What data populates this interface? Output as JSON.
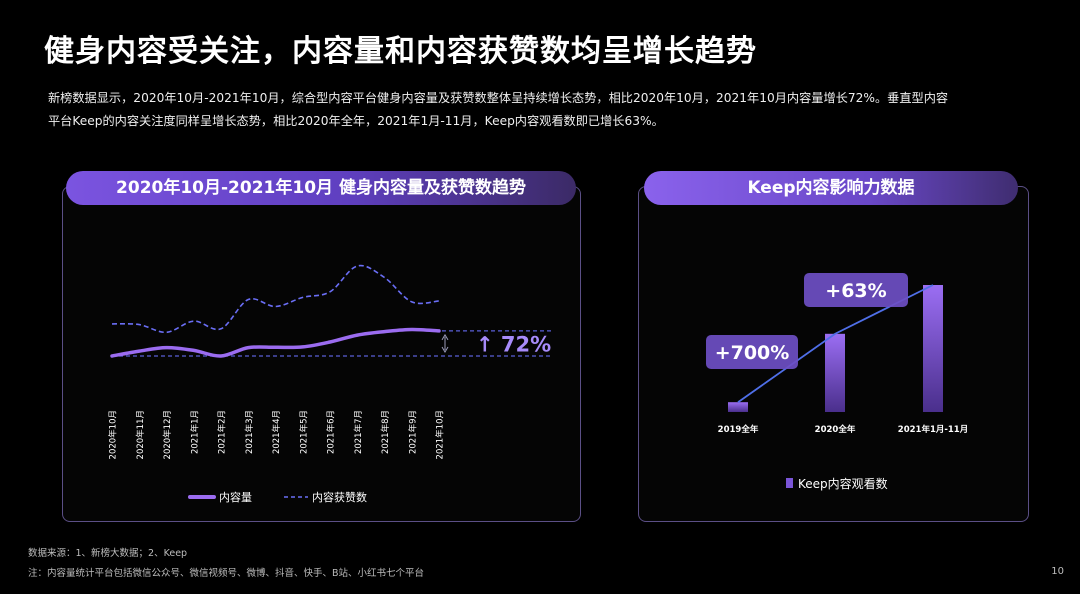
{
  "page": {
    "title": "健身内容受关注，内容量和内容获赞数均呈增长趋势",
    "desc_line1": "新榜数据显示，2020年10月-2021年10月，综合型内容平台健身内容量及获赞数整体呈持续增长态势，相比2020年10月，2021年10月内容量增长72%。垂直型内容",
    "desc_line2": "平台Keep的内容关注度同样呈增长态势，相比2020年全年，2021年1月-11月，Keep内容观看数即已增长63%。",
    "source": "数据来源：1、新榜大数据；2、Keep",
    "note": "注：内容量统计平台包括微信公众号、微信视频号、微博、抖音、快手、B站、小红书七个平台",
    "page_number": "10"
  },
  "colors": {
    "background": "#000000",
    "accent": "#8b5cf6",
    "line_solid": "#9b6cf0",
    "line_dashed": "#6a6ef5",
    "panel_border": "#5b4f86"
  },
  "chart_data": [
    {
      "type": "line",
      "title": "2020年10月-2021年10月 健身内容量及获赞数趋势",
      "categories": [
        "2020年10月",
        "2020年11月",
        "2020年12月",
        "2021年1月",
        "2021年2月",
        "2021年3月",
        "2021年4月",
        "2021年5月",
        "2021年6月",
        "2021年7月",
        "2021年8月",
        "2021年9月",
        "2021年10月"
      ],
      "series": [
        {
          "name": "内容量",
          "style": "solid",
          "values": [
            100,
            114,
            124,
            116,
            100,
            124,
            125,
            126,
            140,
            160,
            170,
            176,
            172
          ]
        },
        {
          "name": "内容获赞数",
          "style": "dashed",
          "values": [
            192,
            190,
            168,
            200,
            178,
            262,
            242,
            268,
            284,
            358,
            325,
            255,
            258
          ]
        }
      ],
      "annotation": "↑ 72%",
      "legend_position": "bottom",
      "grid": false
    },
    {
      "type": "bar",
      "title": "Keep内容影响力数据",
      "categories": [
        "2019全年",
        "2020全年",
        "2021年1月-11月"
      ],
      "series": [
        {
          "name": "Keep内容观看数",
          "values": [
            1,
            8,
            13
          ]
        }
      ],
      "annotations": [
        "+700%",
        "+63%"
      ],
      "legend_position": "bottom"
    }
  ]
}
